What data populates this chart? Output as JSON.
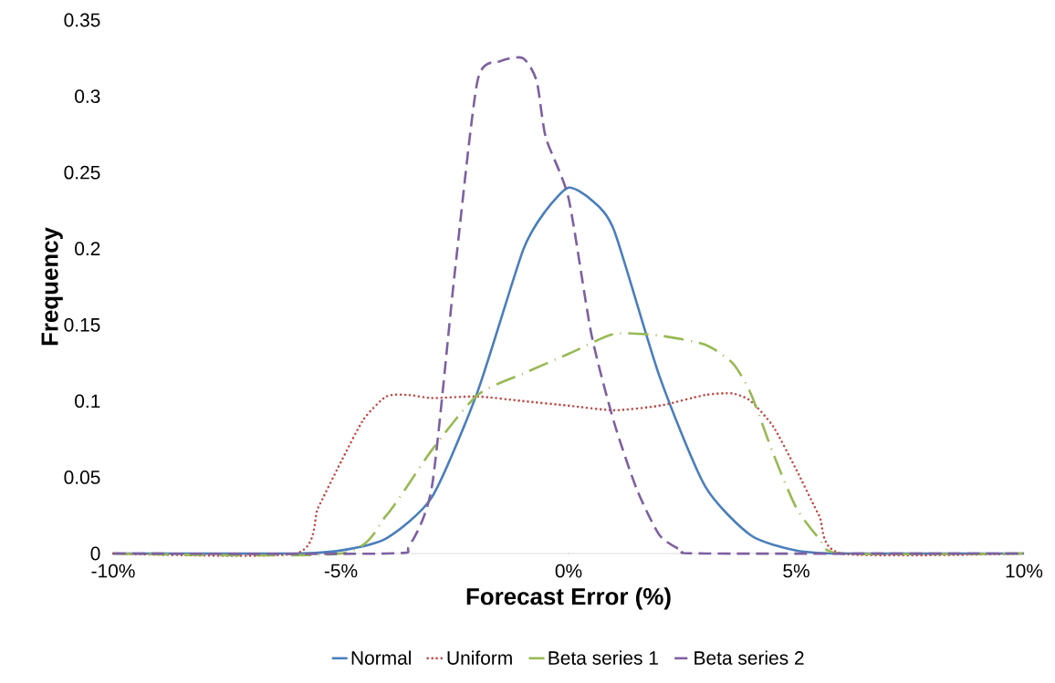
{
  "chart_data": {
    "type": "line",
    "xlabel": "Forecast Error (%)",
    "ylabel": "Frequency",
    "xlim": [
      -10,
      10
    ],
    "ylim": [
      0,
      0.35
    ],
    "xticks": [
      {
        "value": -10,
        "label": "-10%"
      },
      {
        "value": -5,
        "label": "-5%"
      },
      {
        "value": 0,
        "label": "0%"
      },
      {
        "value": 5,
        "label": "5%"
      },
      {
        "value": 10,
        "label": "10%"
      }
    ],
    "yticks": [
      0,
      0.05,
      0.1,
      0.15,
      0.2,
      0.25,
      0.3,
      0.35
    ],
    "grid": false,
    "legend": "bottom",
    "marker": "none",
    "series": [
      {
        "name": "Normal",
        "color": "#4a7ebb",
        "line_style": "solid",
        "x": [
          -10,
          -6,
          -5,
          -4,
          -3,
          -2,
          -1,
          -0.5,
          0,
          0.5,
          1,
          2,
          3,
          4,
          5,
          6,
          10
        ],
        "values": [
          0,
          0,
          0.002,
          0.01,
          0.037,
          0.106,
          0.199,
          0.225,
          0.24,
          0.232,
          0.212,
          0.116,
          0.044,
          0.012,
          0.002,
          0,
          0
        ]
      },
      {
        "name": "Uniform",
        "color": "#be4b48",
        "line_style": "dotted",
        "x": [
          -10,
          -6,
          -5.5,
          -5,
          -4.5,
          -4,
          -3.5,
          -3,
          -2,
          -1,
          0,
          1,
          2,
          3,
          3.6,
          4,
          4.5,
          5,
          5.5,
          6,
          10
        ],
        "values": [
          0,
          0,
          0.03,
          0.06,
          0.088,
          0.103,
          0.104,
          0.102,
          0.103,
          0.1,
          0.097,
          0.094,
          0.097,
          0.104,
          0.105,
          0.1,
          0.083,
          0.055,
          0.025,
          0,
          0
        ]
      },
      {
        "name": "Beta series 1",
        "color": "#98b954",
        "line_style": "dashdot",
        "x": [
          -10,
          -5,
          -4,
          -3,
          -2,
          -1,
          0,
          1,
          2,
          3,
          3.6,
          4,
          4.5,
          5,
          5.5,
          6,
          10
        ],
        "values": [
          0,
          0,
          0.025,
          0.068,
          0.104,
          0.118,
          0.131,
          0.144,
          0.143,
          0.137,
          0.125,
          0.105,
          0.065,
          0.03,
          0.01,
          0,
          0
        ]
      },
      {
        "name": "Beta series 2",
        "color": "#7d60a0",
        "line_style": "dashed",
        "x": [
          -10,
          -4,
          -3.5,
          -3,
          -2.5,
          -2,
          -1.5,
          -1,
          -0.7,
          -0.5,
          0,
          0.5,
          1,
          1.5,
          2,
          2.5,
          3,
          10
        ],
        "values": [
          0,
          0,
          0.005,
          0.044,
          0.184,
          0.31,
          0.323,
          0.325,
          0.31,
          0.273,
          0.233,
          0.144,
          0.086,
          0.042,
          0.012,
          0.002,
          0,
          0
        ]
      }
    ]
  }
}
